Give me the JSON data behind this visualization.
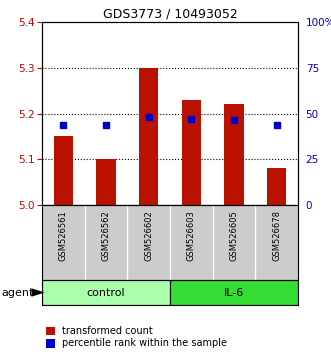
{
  "title": "GDS3773 / 10493052",
  "samples": [
    "GSM526561",
    "GSM526562",
    "GSM526602",
    "GSM526603",
    "GSM526605",
    "GSM526678"
  ],
  "red_values": [
    5.15,
    5.1,
    5.3,
    5.23,
    5.22,
    5.08
  ],
  "blue_values": [
    5.175,
    5.175,
    5.192,
    5.187,
    5.185,
    5.175
  ],
  "y_min": 5.0,
  "y_max": 5.4,
  "y_ticks_left": [
    5.0,
    5.1,
    5.2,
    5.3,
    5.4
  ],
  "y_ticks_right": [
    0,
    25,
    50,
    75,
    100
  ],
  "right_y_labels": [
    "0",
    "25",
    "50",
    "75",
    "100%"
  ],
  "groups": [
    {
      "label": "control",
      "start": 0,
      "end": 2,
      "color": "#AAFFAA"
    },
    {
      "label": "IL-6",
      "start": 3,
      "end": 5,
      "color": "#33DD33"
    }
  ],
  "bar_color": "#BB1100",
  "blue_color": "#0000CC",
  "sample_bg": "#CCCCCC",
  "plot_bg": "#FFFFFF",
  "fig_bg": "#FFFFFF",
  "legend_red": "transformed count",
  "legend_blue": "percentile rank within the sample",
  "agent_label": "agent",
  "title_color": "#000000",
  "left_axis_color": "#CC0000",
  "right_axis_color": "#0000BB",
  "grid_dotted_color": "#000000"
}
